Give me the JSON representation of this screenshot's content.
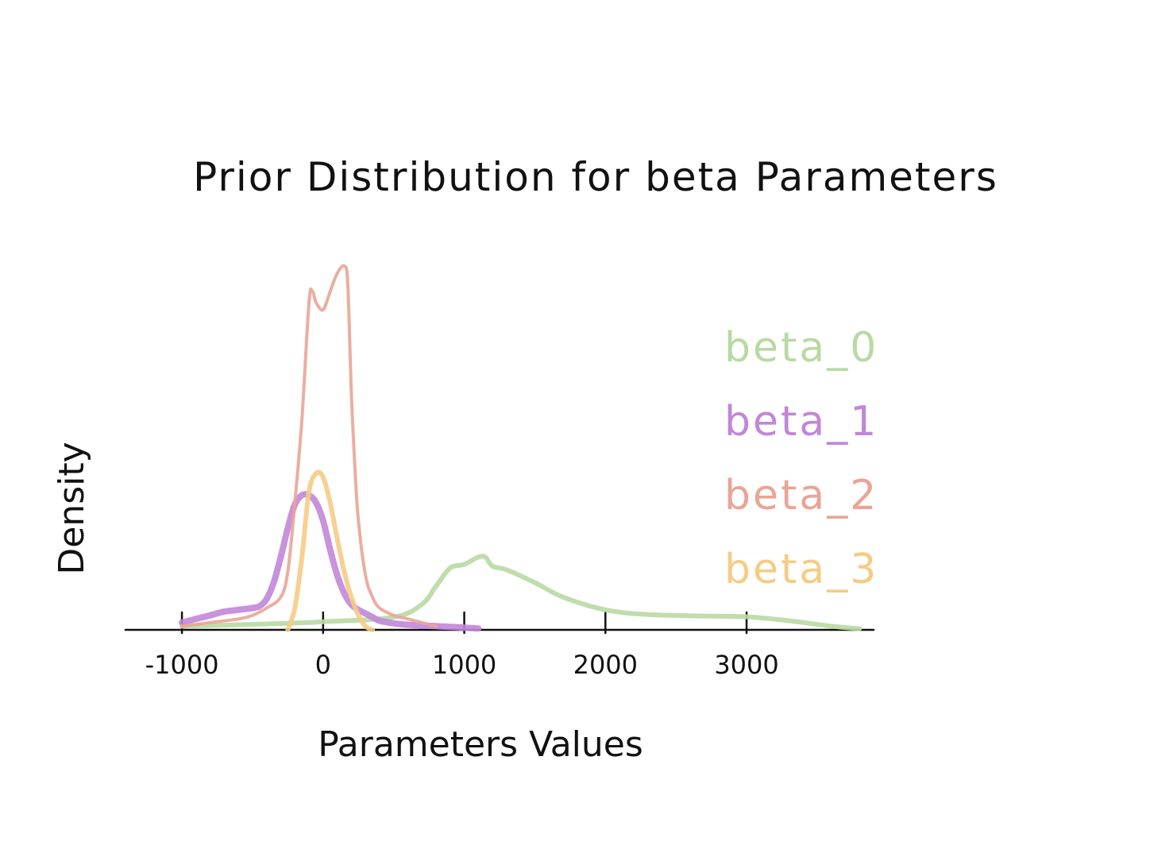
{
  "chart_data": {
    "type": "line",
    "title": "Prior Distribution for beta Parameters",
    "xlabel": "Parameters Values",
    "ylabel": "Density",
    "xlim": [
      -1400,
      3900
    ],
    "ylim": [
      0,
      1.0
    ],
    "x_ticks": [
      -1000,
      0,
      1000,
      2000,
      3000
    ],
    "x_tick_labels": [
      "-1000",
      "0",
      "1000",
      "2000",
      "3000"
    ],
    "grid": false,
    "legend_position": "right",
    "series": [
      {
        "name": "beta_0",
        "color": "#b9d9a3",
        "x": [
          -1000,
          -500,
          0,
          500,
          700,
          800,
          900,
          1000,
          1100,
          1150,
          1200,
          1300,
          1500,
          1700,
          2000,
          2300,
          2700,
          3000,
          3300,
          3600,
          3800
        ],
        "y": [
          0.01,
          0.015,
          0.022,
          0.035,
          0.07,
          0.12,
          0.17,
          0.18,
          0.2,
          0.2,
          0.175,
          0.165,
          0.13,
          0.09,
          0.055,
          0.042,
          0.038,
          0.036,
          0.025,
          0.01,
          0.003
        ]
      },
      {
        "name": "beta_1",
        "color": "#c286d8",
        "x": [
          -1000,
          -900,
          -800,
          -700,
          -600,
          -500,
          -450,
          -400,
          -350,
          -300,
          -250,
          -200,
          -150,
          -100,
          -50,
          0,
          50,
          100,
          150,
          200,
          250,
          300,
          350,
          400,
          500,
          600,
          700,
          800,
          900,
          1000,
          1100
        ],
        "y": [
          0.02,
          0.03,
          0.04,
          0.05,
          0.055,
          0.06,
          0.065,
          0.085,
          0.13,
          0.2,
          0.28,
          0.345,
          0.37,
          0.37,
          0.35,
          0.3,
          0.22,
          0.15,
          0.1,
          0.07,
          0.055,
          0.045,
          0.035,
          0.025,
          0.018,
          0.014,
          0.012,
          0.01,
          0.008,
          0.006,
          0.004
        ]
      },
      {
        "name": "beta_2",
        "color": "#e8a596",
        "x": [
          -1000,
          -800,
          -600,
          -500,
          -400,
          -300,
          -250,
          -200,
          -150,
          -100,
          -75,
          -50,
          0,
          50,
          100,
          150,
          175,
          200,
          225,
          250,
          300,
          350,
          400,
          500,
          600,
          700,
          800
        ],
        "y": [
          0.01,
          0.02,
          0.03,
          0.04,
          0.06,
          0.09,
          0.16,
          0.35,
          0.58,
          0.9,
          0.93,
          0.9,
          0.88,
          0.93,
          0.98,
          1.0,
          0.95,
          0.65,
          0.45,
          0.3,
          0.15,
          0.09,
          0.06,
          0.04,
          0.03,
          0.02,
          0.01
        ]
      },
      {
        "name": "beta_3",
        "color": "#f5cc85",
        "x": [
          -250,
          -200,
          -150,
          -100,
          -50,
          0,
          50,
          100,
          150,
          200,
          250,
          300,
          350
        ],
        "y": [
          0.0,
          0.06,
          0.2,
          0.38,
          0.43,
          0.42,
          0.35,
          0.25,
          0.16,
          0.09,
          0.04,
          0.01,
          0.0
        ]
      }
    ]
  }
}
